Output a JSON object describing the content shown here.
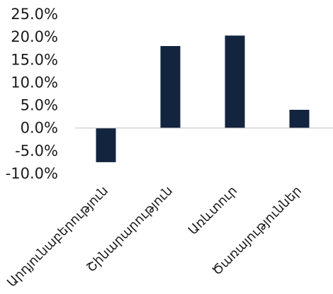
{
  "chart_data": {
    "type": "bar",
    "categories": [
      "Արդյունաբերություն",
      "Շինարարություն",
      "Առևտուր",
      "Ծառայություններ"
    ],
    "values": [
      -7.5,
      18.0,
      20.3,
      4.0
    ],
    "ylim": [
      -10,
      25
    ],
    "yticks": [
      25,
      20,
      15,
      10,
      5,
      0,
      -5,
      -10
    ],
    "ytick_labels": [
      "25.0%",
      "20.0%",
      "15.0%",
      "10.0%",
      "5.0%",
      "0.0%",
      "-5.0%",
      "-10.0%"
    ],
    "bar_color": "#13243f",
    "grid": false,
    "legend": "none"
  }
}
